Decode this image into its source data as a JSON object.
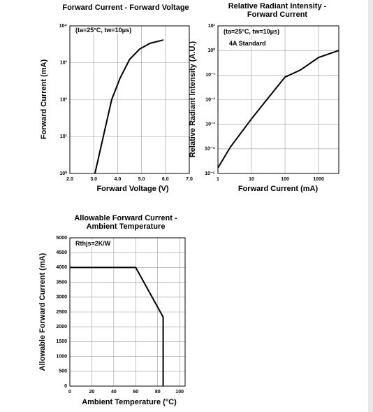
{
  "chart_data": [
    {
      "type": "line",
      "title": [
        "Forward Current - Forward Voltage"
      ],
      "x_label": "Forward Voltage (V)",
      "y_label": "Forward Current (mA)",
      "annotations": [
        "(ta=25°C, tw=10μs)"
      ],
      "color": "#000000",
      "x_scale": "linear",
      "y_scale": "log",
      "grid": true,
      "x": [
        3.05,
        3.4,
        3.75,
        4.1,
        4.5,
        4.92,
        5.36,
        5.92
      ],
      "values": [
        1,
        10,
        100,
        380,
        1230,
        2350,
        3380,
        4170
      ],
      "xlim": [
        2,
        7
      ],
      "ylim": [
        1,
        10000
      ],
      "xticks": [
        {
          "value": 2,
          "label": "2.0"
        },
        {
          "value": 3,
          "label": "3.0"
        },
        {
          "value": 4,
          "label": "4.0"
        },
        {
          "value": 5,
          "label": "5.0"
        },
        {
          "value": 6,
          "label": "6.0"
        },
        {
          "value": 7,
          "label": "7.0"
        }
      ],
      "yticks": [
        {
          "value": 1,
          "label": "10⁰"
        },
        {
          "value": 10,
          "label": "10¹"
        },
        {
          "value": 100,
          "label": "10²"
        },
        {
          "value": 1000,
          "label": "10³"
        },
        {
          "value": 10000,
          "label": "10⁴"
        }
      ]
    },
    {
      "type": "line",
      "title": [
        "Relative Radiant Intensity -",
        "Forward Current"
      ],
      "x_label": "Forward Current (mA)",
      "y_label": "Relative Radiant Intensity (A.U.)",
      "annotations": [
        "(ta=25°C, tw=10μs)",
        "4A Standard"
      ],
      "color": "#000000",
      "x_scale": "log",
      "y_scale": "log",
      "grid": true,
      "x": [
        1,
        2.37,
        10,
        26,
        100,
        286,
        1000,
        4000
      ],
      "values": [
        1.7e-05,
        0.00012,
        0.00166,
        0.0085,
        0.083,
        0.16,
        0.52,
        1
      ],
      "xlim": [
        1,
        4000
      ],
      "ylim": [
        1e-05,
        10
      ],
      "xticks": [
        1,
        10,
        100,
        1000
      ],
      "yticks": [
        {
          "value": 10,
          "label": "10¹"
        },
        {
          "value": 1,
          "label": "10⁰"
        },
        {
          "value": 0.1,
          "label": "10⁻¹"
        },
        {
          "value": 0.01,
          "label": "10⁻²"
        },
        {
          "value": 0.001,
          "label": "10⁻³"
        },
        {
          "value": 0.0001,
          "label": "10⁻⁴"
        },
        {
          "value": 1e-05,
          "label": "10⁻⁵"
        }
      ]
    },
    {
      "type": "line",
      "title": [
        "Allowable Forward Current -",
        "Ambient Temperature"
      ],
      "x_label": "Ambient Temperature (°C)",
      "y_label": "Allowable Forward Current (mA)",
      "annotations": [
        "Rthjs=2K/W"
      ],
      "color": "#000000",
      "x_scale": "linear",
      "y_scale": "linear",
      "grid": true,
      "x": [
        0,
        60,
        85,
        85
      ],
      "values": [
        4000,
        4000,
        2330,
        0
      ],
      "xlim": [
        0,
        105
      ],
      "ylim": [
        0,
        5000
      ],
      "xticks": [
        0,
        20,
        40,
        60,
        80,
        100
      ],
      "yticks": [
        0,
        500,
        1000,
        1500,
        2000,
        2500,
        3000,
        3500,
        4000,
        4500,
        5000
      ]
    }
  ]
}
